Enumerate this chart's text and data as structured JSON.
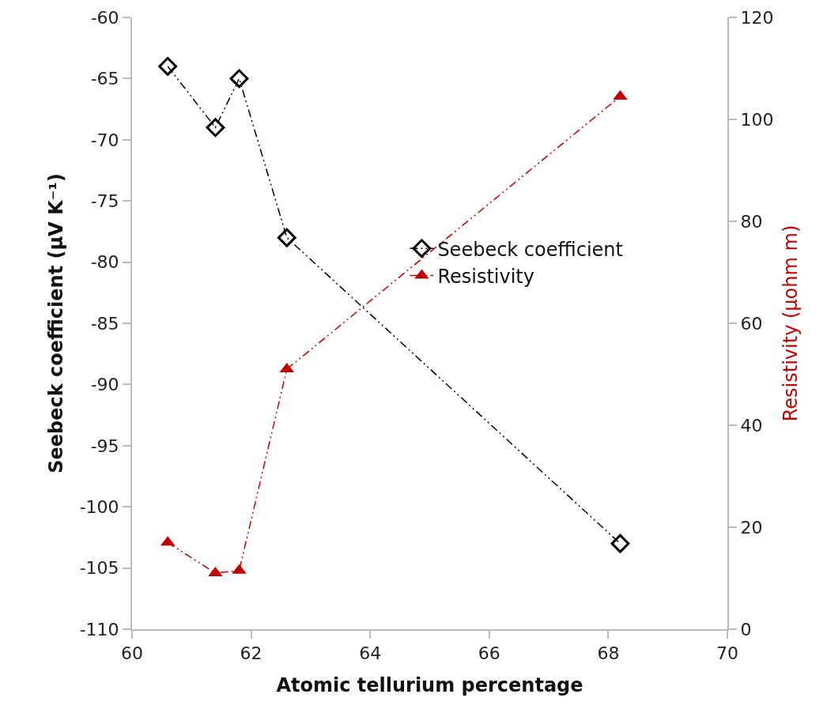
{
  "chart_data": {
    "type": "line",
    "xlabel": "Atomic tellurium percentage",
    "ylabel": "Seebeck coefficient (μV K⁻¹)",
    "y2label": "Resistivity (μohm m)",
    "x": [
      60.6,
      61.4,
      61.8,
      62.6,
      68.2
    ],
    "series": [
      {
        "name": "Seebeck coefficient",
        "color": "#000000",
        "marker": "diamond",
        "line_style": "dashed",
        "values": [
          -64,
          -69,
          -65,
          -78,
          -103
        ]
      },
      {
        "name": "Resistivity",
        "color": "#c00000",
        "marker": "triangle",
        "line_style": "dashed",
        "axis": "y2",
        "values": [
          17,
          11,
          11.5,
          51,
          104.5
        ]
      }
    ],
    "xlim": [
      60,
      70
    ],
    "xticks": [
      60,
      62,
      64,
      66,
      68,
      70
    ],
    "ylim": [
      -110,
      -60
    ],
    "yticks": [
      -110,
      -105,
      -100,
      -95,
      -90,
      -85,
      -80,
      -75,
      -70,
      -65,
      -60
    ],
    "y2lim": [
      0,
      120
    ],
    "y2ticks": [
      0,
      20,
      40,
      60,
      80,
      100,
      120
    ],
    "grid": false,
    "legend": "center"
  }
}
